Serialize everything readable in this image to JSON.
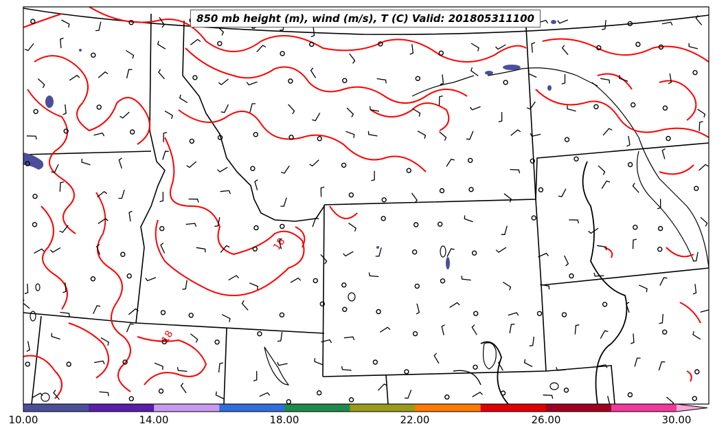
{
  "title": "850 mb height (m), wind (m/s), T (C) Valid: 201805311100",
  "contour_labels": [
    "18",
    "18"
  ],
  "colorbar": {
    "ticks": [
      "10.00",
      "14.00",
      "18.00",
      "22.00",
      "26.00",
      "30.00"
    ],
    "range": [
      10,
      32
    ],
    "colors": [
      "#4b4f9a",
      "#5a1ea8",
      "#c79af0",
      "#2f6fdb",
      "#1f8a4c",
      "#9a9a1a",
      "#ff7a00",
      "#e00000",
      "#a10020",
      "#f03a9a",
      "#f7a8d8"
    ]
  },
  "styles": {
    "isotherm_color": "#ff0000",
    "shade_color": "#4b4f9a",
    "border_color": "#000000"
  }
}
